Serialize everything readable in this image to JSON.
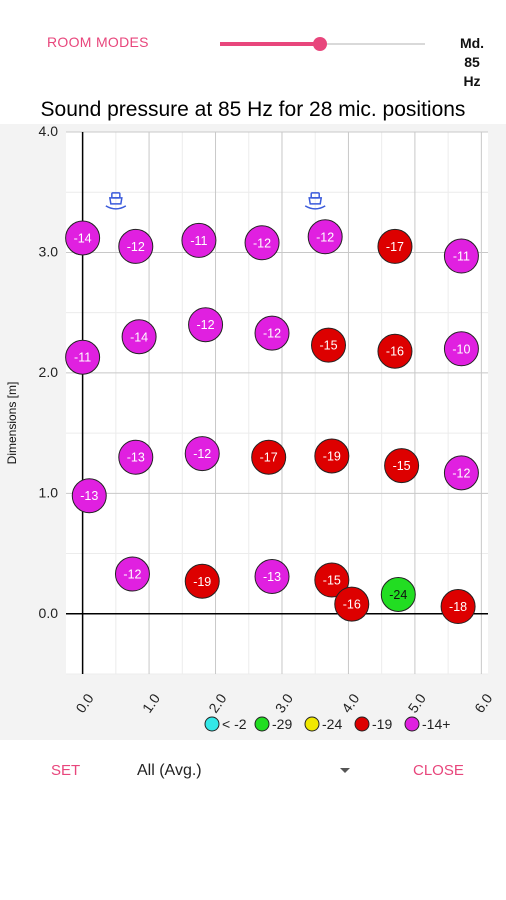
{
  "header": {
    "room_modes_label": "ROOM MODES",
    "mode_label": "Md.\n85\nHz",
    "slider_value": 0.49,
    "accent_color": "#e8467c"
  },
  "chart_data": {
    "type": "scatter",
    "title": "Sound pressure at 85 Hz for 28 mic. positions",
    "xlabel": "",
    "ylabel": "Dimensions [m]",
    "xlim": [
      -0.25,
      6.1
    ],
    "ylim": [
      -0.5,
      4.0
    ],
    "x_ticks": [
      0.0,
      1.0,
      2.0,
      3.0,
      4.0,
      5.0,
      6.0
    ],
    "x_tick_labels": [
      "0.0",
      "1.0",
      "2.0",
      "3.0",
      "4.0",
      "5.0",
      "6.0"
    ],
    "y_ticks": [
      0.0,
      1.0,
      2.0,
      3.0,
      4.0
    ],
    "y_tick_labels": [
      "0.0",
      "1.0",
      "2.0",
      "3.0",
      "4.0"
    ],
    "grid": true,
    "legend_position": "bottom",
    "legend": [
      {
        "label": "< -2",
        "color": "#33e8e8"
      },
      {
        "label": "-29",
        "color": "#22dd22"
      },
      {
        "label": "-24",
        "color": "#f0e800"
      },
      {
        "label": "-19",
        "color": "#dd0000"
      },
      {
        "label": "-14+",
        "color": "#e020e0"
      }
    ],
    "speakers": [
      {
        "x": 0.5,
        "y": 3.42
      },
      {
        "x": 3.5,
        "y": 3.42
      }
    ],
    "points": [
      {
        "x": 0.0,
        "y": 3.12,
        "value": -14,
        "color": "#e020e0"
      },
      {
        "x": 0.8,
        "y": 3.05,
        "value": -12,
        "color": "#e020e0"
      },
      {
        "x": 1.75,
        "y": 3.1,
        "value": -11,
        "color": "#e020e0"
      },
      {
        "x": 2.7,
        "y": 3.08,
        "value": -12,
        "color": "#e020e0"
      },
      {
        "x": 3.65,
        "y": 3.13,
        "value": -12,
        "color": "#e020e0"
      },
      {
        "x": 4.7,
        "y": 3.05,
        "value": -17,
        "color": "#dd0000"
      },
      {
        "x": 5.7,
        "y": 2.97,
        "value": -11,
        "color": "#e020e0"
      },
      {
        "x": 0.0,
        "y": 2.13,
        "value": -11,
        "color": "#e020e0"
      },
      {
        "x": 0.85,
        "y": 2.3,
        "value": -14,
        "color": "#e020e0"
      },
      {
        "x": 1.85,
        "y": 2.4,
        "value": -12,
        "color": "#e020e0"
      },
      {
        "x": 2.85,
        "y": 2.33,
        "value": -12,
        "color": "#e020e0"
      },
      {
        "x": 3.7,
        "y": 2.23,
        "value": -15,
        "color": "#dd0000"
      },
      {
        "x": 4.7,
        "y": 2.18,
        "value": -16,
        "color": "#dd0000"
      },
      {
        "x": 5.7,
        "y": 2.2,
        "value": -10,
        "color": "#e020e0"
      },
      {
        "x": 0.1,
        "y": 0.98,
        "value": -13,
        "color": "#e020e0"
      },
      {
        "x": 0.8,
        "y": 1.3,
        "value": -13,
        "color": "#e020e0"
      },
      {
        "x": 1.8,
        "y": 1.33,
        "value": -12,
        "color": "#e020e0"
      },
      {
        "x": 2.8,
        "y": 1.3,
        "value": -17,
        "color": "#dd0000"
      },
      {
        "x": 3.75,
        "y": 1.31,
        "value": -19,
        "color": "#dd0000"
      },
      {
        "x": 4.8,
        "y": 1.23,
        "value": -15,
        "color": "#dd0000"
      },
      {
        "x": 5.7,
        "y": 1.17,
        "value": -12,
        "color": "#e020e0"
      },
      {
        "x": 0.75,
        "y": 0.33,
        "value": -12,
        "color": "#e020e0"
      },
      {
        "x": 1.8,
        "y": 0.27,
        "value": -19,
        "color": "#dd0000"
      },
      {
        "x": 2.85,
        "y": 0.31,
        "value": -13,
        "color": "#e020e0"
      },
      {
        "x": 3.75,
        "y": 0.28,
        "value": -15,
        "color": "#dd0000"
      },
      {
        "x": 4.05,
        "y": 0.08,
        "value": -16,
        "color": "#dd0000"
      },
      {
        "x": 4.75,
        "y": 0.16,
        "value": -24,
        "color": "#22dd22"
      },
      {
        "x": 5.65,
        "y": 0.06,
        "value": -18,
        "color": "#dd0000"
      }
    ]
  },
  "footer": {
    "set_label": "SET",
    "source_value": "All (Avg.)",
    "close_label": "CLOSE"
  }
}
